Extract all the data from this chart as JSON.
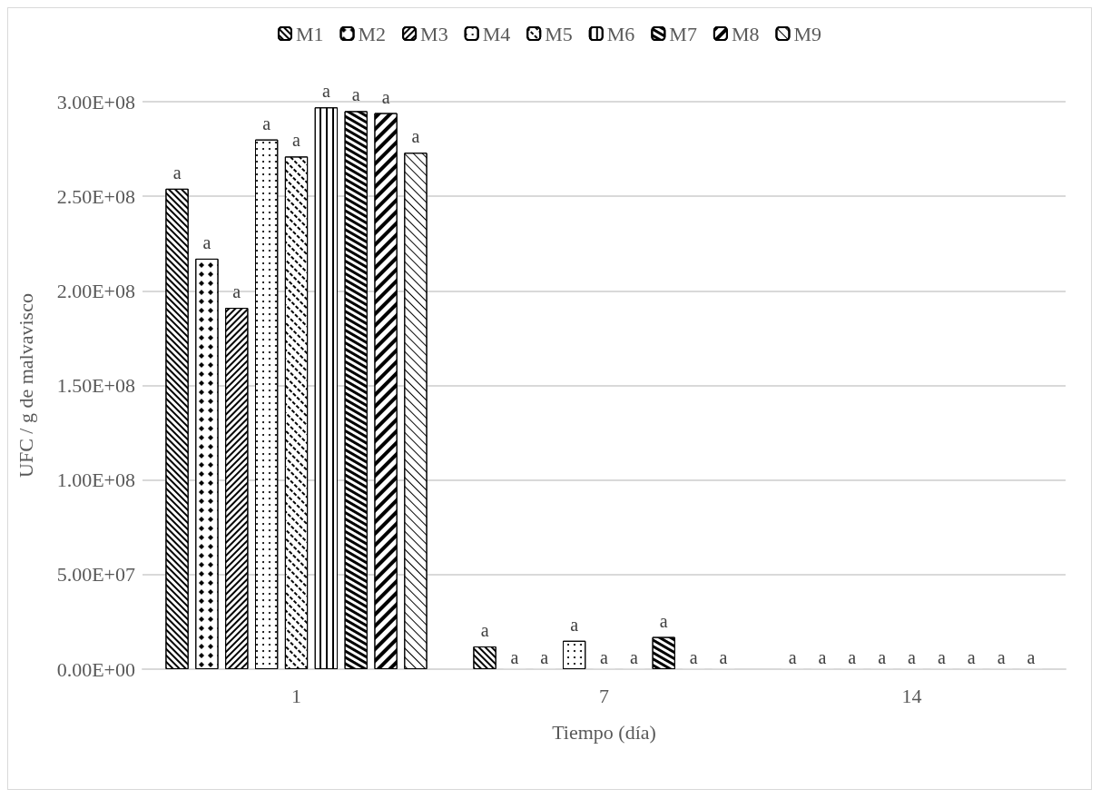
{
  "chart_data": {
    "type": "bar",
    "xlabel": "Tiempo (día)",
    "ylabel": "UFC / g de malvavisco",
    "categories": [
      "1",
      "7",
      "14"
    ],
    "ylim": [
      0,
      300000000
    ],
    "yticks": [
      {
        "value": 0,
        "label": "0.00E+00"
      },
      {
        "value": 50000000,
        "label": "5.00E+07"
      },
      {
        "value": 100000000,
        "label": "1.00E+08"
      },
      {
        "value": 150000000,
        "label": "1.50E+08"
      },
      {
        "value": 200000000,
        "label": "2.00E+08"
      },
      {
        "value": 250000000,
        "label": "2.50E+08"
      },
      {
        "value": 300000000,
        "label": "3.00E+08"
      }
    ],
    "grid": "y",
    "legend": "top",
    "series": [
      {
        "name": "M1",
        "color": "#ffffff",
        "values": [
          254000000,
          12000000,
          0
        ],
        "value_labels": [
          "a",
          "a",
          "a"
        ]
      },
      {
        "name": "M2",
        "color": "#ffffff",
        "values": [
          217000000,
          0,
          0
        ],
        "value_labels": [
          "a",
          "a",
          "a"
        ]
      },
      {
        "name": "M3",
        "color": "#ffffff",
        "values": [
          191000000,
          0,
          0
        ],
        "value_labels": [
          "a",
          "a",
          "a"
        ]
      },
      {
        "name": "M4",
        "color": "#ffffff",
        "values": [
          280000000,
          15000000,
          0
        ],
        "value_labels": [
          "a",
          "a",
          "a"
        ]
      },
      {
        "name": "M5",
        "color": "#ffffff",
        "values": [
          271000000,
          0,
          0
        ],
        "value_labels": [
          "a",
          "a",
          "a"
        ]
      },
      {
        "name": "M6",
        "color": "#ffffff",
        "values": [
          297000000,
          0,
          0
        ],
        "value_labels": [
          "a",
          "a",
          "a"
        ]
      },
      {
        "name": "M7",
        "color": "#ffffff",
        "values": [
          295000000,
          17000000,
          0
        ],
        "value_labels": [
          "a",
          "a",
          "a"
        ]
      },
      {
        "name": "M8",
        "color": "#ffffff",
        "values": [
          294000000,
          0,
          0
        ],
        "value_labels": [
          "a",
          "a",
          "a"
        ]
      },
      {
        "name": "M9",
        "color": "#ffffff",
        "values": [
          273000000,
          0,
          0
        ],
        "value_labels": [
          "a",
          "a",
          "a"
        ]
      }
    ]
  }
}
